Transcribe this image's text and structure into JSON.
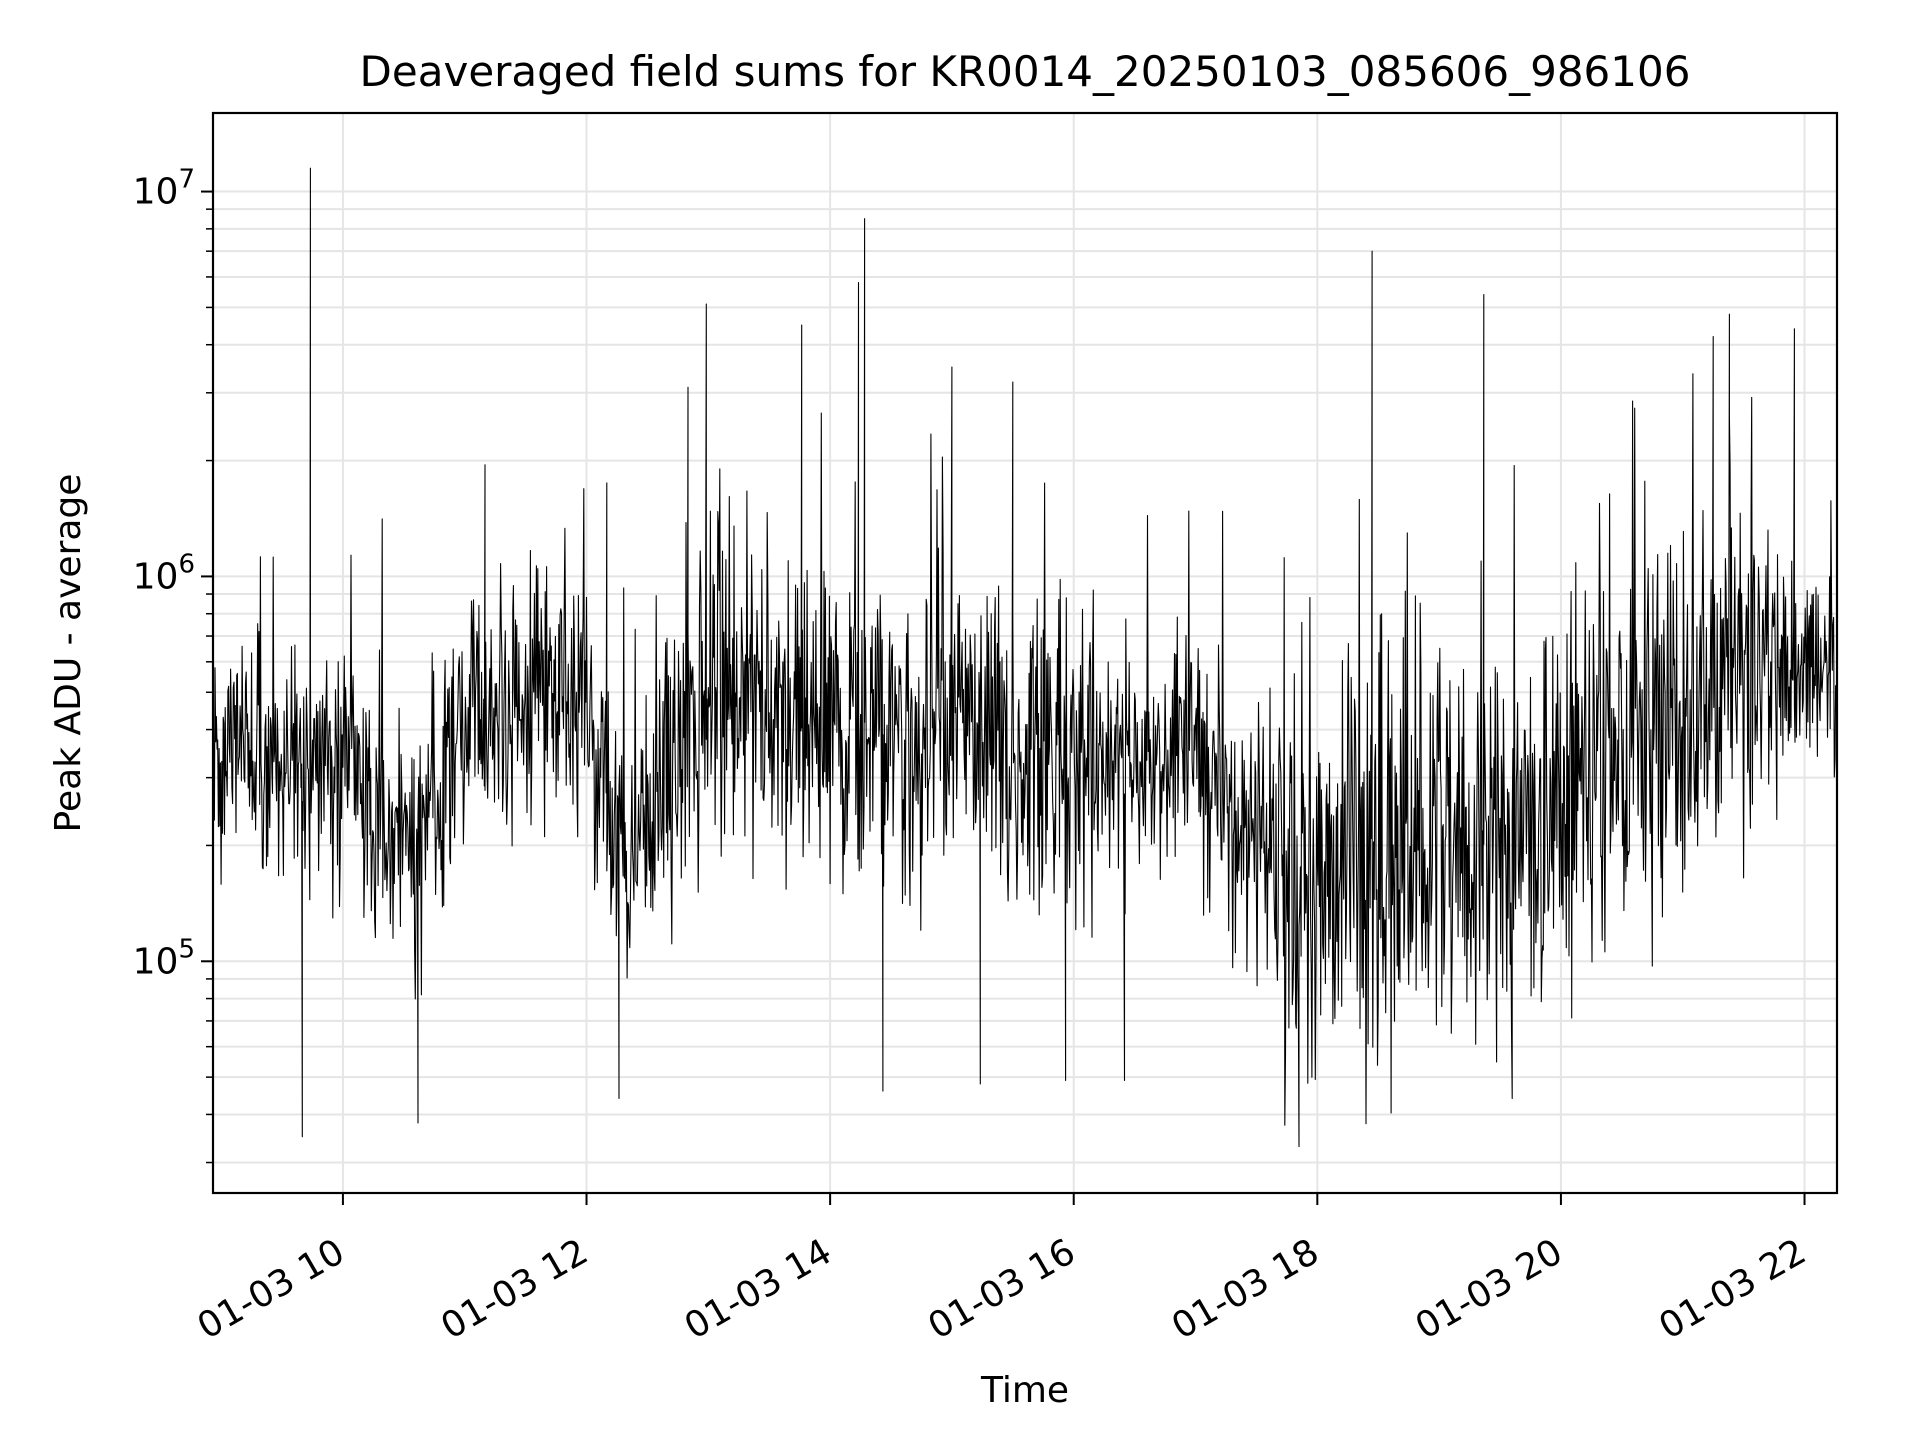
{
  "chart_data": {
    "type": "line",
    "title": "Deaveraged field sums for KR0014_20250103_085606_986106",
    "xlabel": "Time",
    "ylabel": "Peak ADU - average",
    "x_range": [
      "2025-01-03 08:56",
      "2025-01-03 22:16"
    ],
    "x_ticks": [
      {
        "label": "01-03 10",
        "x": "2025-01-03 10:00"
      },
      {
        "label": "01-03 12",
        "x": "2025-01-03 12:00"
      },
      {
        "label": "01-03 14",
        "x": "2025-01-03 14:00"
      },
      {
        "label": "01-03 16",
        "x": "2025-01-03 16:00"
      },
      {
        "label": "01-03 18",
        "x": "2025-01-03 18:00"
      },
      {
        "label": "01-03 20",
        "x": "2025-01-03 20:00"
      },
      {
        "label": "01-03 22",
        "x": "2025-01-03 22:00"
      }
    ],
    "y_scale": "log",
    "ylim": [
      25000,
      16000000
    ],
    "y_ticks": [
      {
        "base": "10",
        "exp": "5",
        "value": 100000
      },
      {
        "base": "10",
        "exp": "6",
        "value": 1000000
      },
      {
        "base": "10",
        "exp": "7",
        "value": 10000000
      }
    ],
    "grid": true,
    "line_color": "#000000",
    "grid_color": "#e5e5e5",
    "series": [
      {
        "points": [
          [
            "2025-01-03 08:56",
            650000
          ],
          [
            "2025-01-03 09:40",
            35000
          ],
          [
            "2025-01-03 09:44",
            11500000
          ],
          [
            "2025-01-03 10:37",
            38000
          ],
          [
            "2025-01-03 11:10",
            1950000
          ],
          [
            "2025-01-03 12:10",
            1750000
          ],
          [
            "2025-01-03 12:16",
            44000
          ],
          [
            "2025-01-03 12:50",
            3100000
          ],
          [
            "2025-01-03 12:59",
            5100000
          ],
          [
            "2025-01-03 13:46",
            4500000
          ],
          [
            "2025-01-03 14:14",
            5800000
          ],
          [
            "2025-01-03 14:17",
            8500000
          ],
          [
            "2025-01-03 14:26",
            46000
          ],
          [
            "2025-01-03 15:00",
            3500000
          ],
          [
            "2025-01-03 15:14",
            48000
          ],
          [
            "2025-01-03 15:30",
            3200000
          ],
          [
            "2025-01-03 15:56",
            49000
          ],
          [
            "2025-01-03 16:25",
            49000
          ],
          [
            "2025-01-03 17:51",
            33000
          ],
          [
            "2025-01-03 18:27",
            7000000
          ],
          [
            "2025-01-03 19:22",
            5400000
          ],
          [
            "2025-01-03 19:36",
            44000
          ],
          [
            "2025-01-03 21:15",
            4200000
          ],
          [
            "2025-01-03 21:23",
            4800000
          ],
          [
            "2025-01-03 21:55",
            4400000
          ],
          [
            "2025-01-03 22:16",
            650000
          ]
        ]
      }
    ]
  }
}
